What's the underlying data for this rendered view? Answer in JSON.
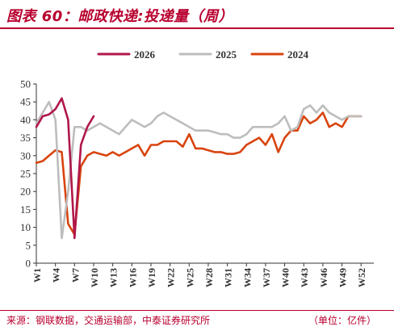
{
  "figure": {
    "title": "图表 60：邮政快递:投递量（周）",
    "source": "来源：钢联数据，交通运输部，中泰证券研究所",
    "unit": "（单位：亿件）"
  },
  "colors": {
    "title": "#b8002e",
    "s2026": "#b0174a",
    "s2025": "#bdbdbd",
    "s2024": "#d8440e",
    "axis": "#333333"
  },
  "chart_data": {
    "type": "line",
    "xlabel": "",
    "ylabel": "",
    "ylim": [
      0,
      50
    ],
    "yticks": [
      0,
      5,
      10,
      15,
      20,
      25,
      30,
      35,
      40,
      45,
      50
    ],
    "grid": false,
    "legend_position": "top",
    "tick_labels": [
      "W1",
      "W4",
      "W7",
      "W10",
      "W13",
      "W16",
      "W19",
      "W22",
      "W25",
      "W28",
      "W31",
      "W34",
      "W37",
      "W40",
      "W43",
      "W46",
      "W49",
      "W52"
    ],
    "tick_positions": [
      1,
      4,
      7,
      10,
      13,
      16,
      19,
      22,
      25,
      28,
      31,
      34,
      37,
      40,
      43,
      46,
      49,
      52
    ],
    "series": [
      {
        "name": "2026",
        "color": "#b0174a",
        "x": [
          1,
          2,
          3,
          4,
          5,
          6,
          7,
          8,
          9,
          10
        ],
        "y": [
          38,
          41,
          41.5,
          43,
          46,
          40,
          7,
          33,
          38,
          41
        ]
      },
      {
        "name": "2025",
        "color": "#bdbdbd",
        "x": [
          1,
          2,
          3,
          4,
          5,
          6,
          7,
          8,
          9,
          10,
          11,
          12,
          13,
          14,
          15,
          16,
          17,
          18,
          19,
          20,
          21,
          22,
          23,
          24,
          25,
          26,
          27,
          28,
          29,
          30,
          31,
          32,
          33,
          34,
          35,
          36,
          37,
          38,
          39,
          40,
          41,
          42,
          43,
          44,
          45,
          46,
          47,
          48,
          49,
          50,
          51,
          52
        ],
        "y": [
          39,
          42,
          45,
          40,
          7,
          20,
          38,
          38,
          37,
          38,
          39,
          38,
          37,
          36,
          38,
          40,
          39,
          38,
          39,
          41,
          42,
          41,
          40,
          39,
          38,
          37,
          37,
          37,
          36.5,
          36,
          36,
          35,
          35,
          36,
          38,
          38,
          38,
          38,
          39,
          41,
          37,
          38,
          43,
          44,
          42,
          44,
          42,
          41,
          40,
          41,
          41,
          41
        ]
      },
      {
        "name": "2024",
        "color": "#d8440e",
        "x": [
          1,
          2,
          3,
          4,
          5,
          6,
          7,
          8,
          9,
          10,
          11,
          12,
          13,
          14,
          15,
          16,
          17,
          18,
          19,
          20,
          21,
          22,
          23,
          24,
          25,
          26,
          27,
          28,
          29,
          30,
          31,
          32,
          33,
          34,
          35,
          36,
          37,
          38,
          39,
          40,
          41,
          42,
          43,
          44,
          45,
          46,
          47,
          48,
          49,
          50,
          51,
          52
        ],
        "y": [
          28,
          28.5,
          30,
          31.5,
          31,
          11,
          8,
          27,
          30,
          31,
          30.5,
          30,
          31,
          30,
          31,
          32,
          33,
          30,
          33,
          33,
          34,
          34,
          34,
          32.5,
          36,
          32,
          32,
          31.5,
          31,
          31,
          30.5,
          30.5,
          31,
          33,
          34,
          35,
          33,
          36,
          31,
          35,
          37,
          37,
          41,
          39,
          40,
          42,
          38,
          39,
          38,
          41,
          41,
          41
        ]
      }
    ]
  }
}
